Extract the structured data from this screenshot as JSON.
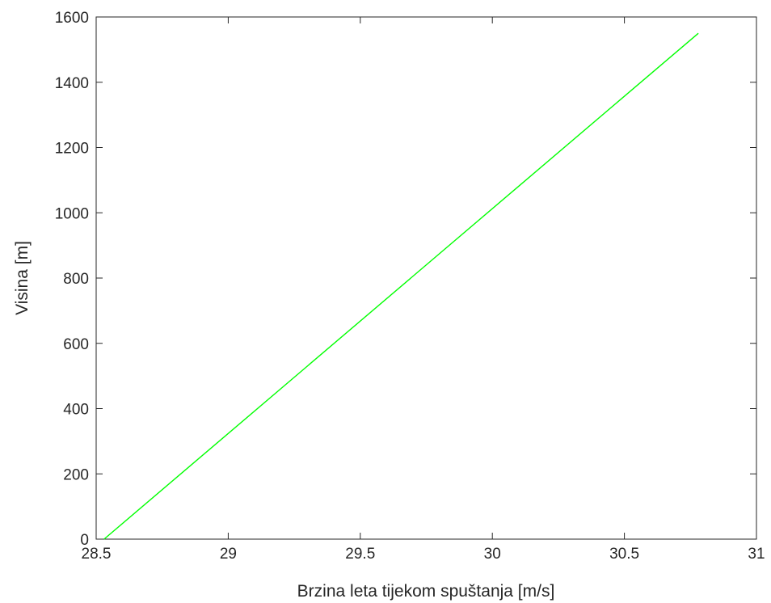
{
  "chart_data": {
    "type": "line",
    "title": "",
    "xlabel": "Brzina leta tijekom spuštanja [m/s]",
    "ylabel": "Visina [m]",
    "xlim": [
      28.5,
      31
    ],
    "ylim": [
      0,
      1600
    ],
    "xticks": [
      28.5,
      29,
      29.5,
      30,
      30.5,
      31
    ],
    "xtick_labels": [
      "28.5",
      "29",
      "29.5",
      "30",
      "30.5",
      "31"
    ],
    "yticks": [
      0,
      200,
      400,
      600,
      800,
      1000,
      1200,
      1400,
      1600
    ],
    "ytick_labels": [
      "0",
      "200",
      "400",
      "600",
      "800",
      "1000",
      "1200",
      "1400",
      "1600"
    ],
    "grid": false,
    "series": [
      {
        "color": "#00ff00",
        "x": [
          28.53,
          30.78
        ],
        "y": [
          0,
          1550
        ]
      }
    ]
  }
}
